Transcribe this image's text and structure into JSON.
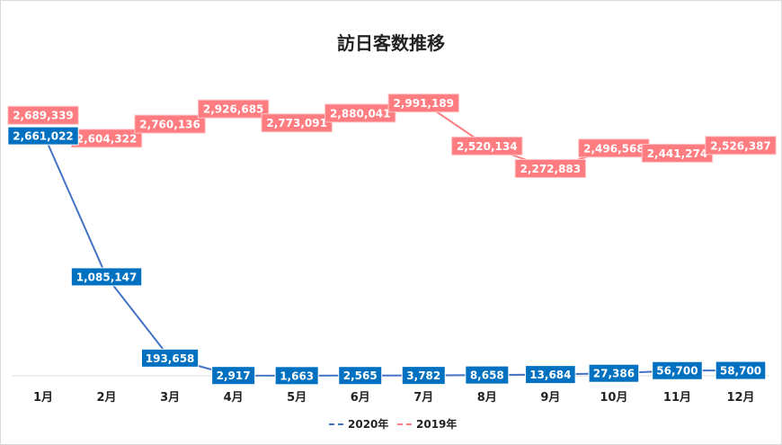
{
  "chart_data": {
    "type": "line",
    "title": "訪日客数推移",
    "categories": [
      "1月",
      "2月",
      "3月",
      "4月",
      "5月",
      "6月",
      "7月",
      "8月",
      "9月",
      "10月",
      "11月",
      "12月"
    ],
    "series": [
      {
        "name": "2020年",
        "color": "#4472C4",
        "label_color": "#0070C0",
        "values": [
          2661022,
          1085147,
          193658,
          2917,
          1663,
          2565,
          3782,
          8658,
          13684,
          27386,
          56700,
          58700
        ]
      },
      {
        "name": "2019年",
        "color": "#FF7C80",
        "label_color": "#FF7C80",
        "values": [
          2689339,
          2604322,
          2760136,
          2926685,
          2773091,
          2880041,
          2991189,
          2520134,
          2272883,
          2496568,
          2441274,
          2526387
        ]
      }
    ],
    "ylim": [
      0,
      3500000
    ],
    "grid": false,
    "legend": "bottom",
    "data_labels": true
  }
}
